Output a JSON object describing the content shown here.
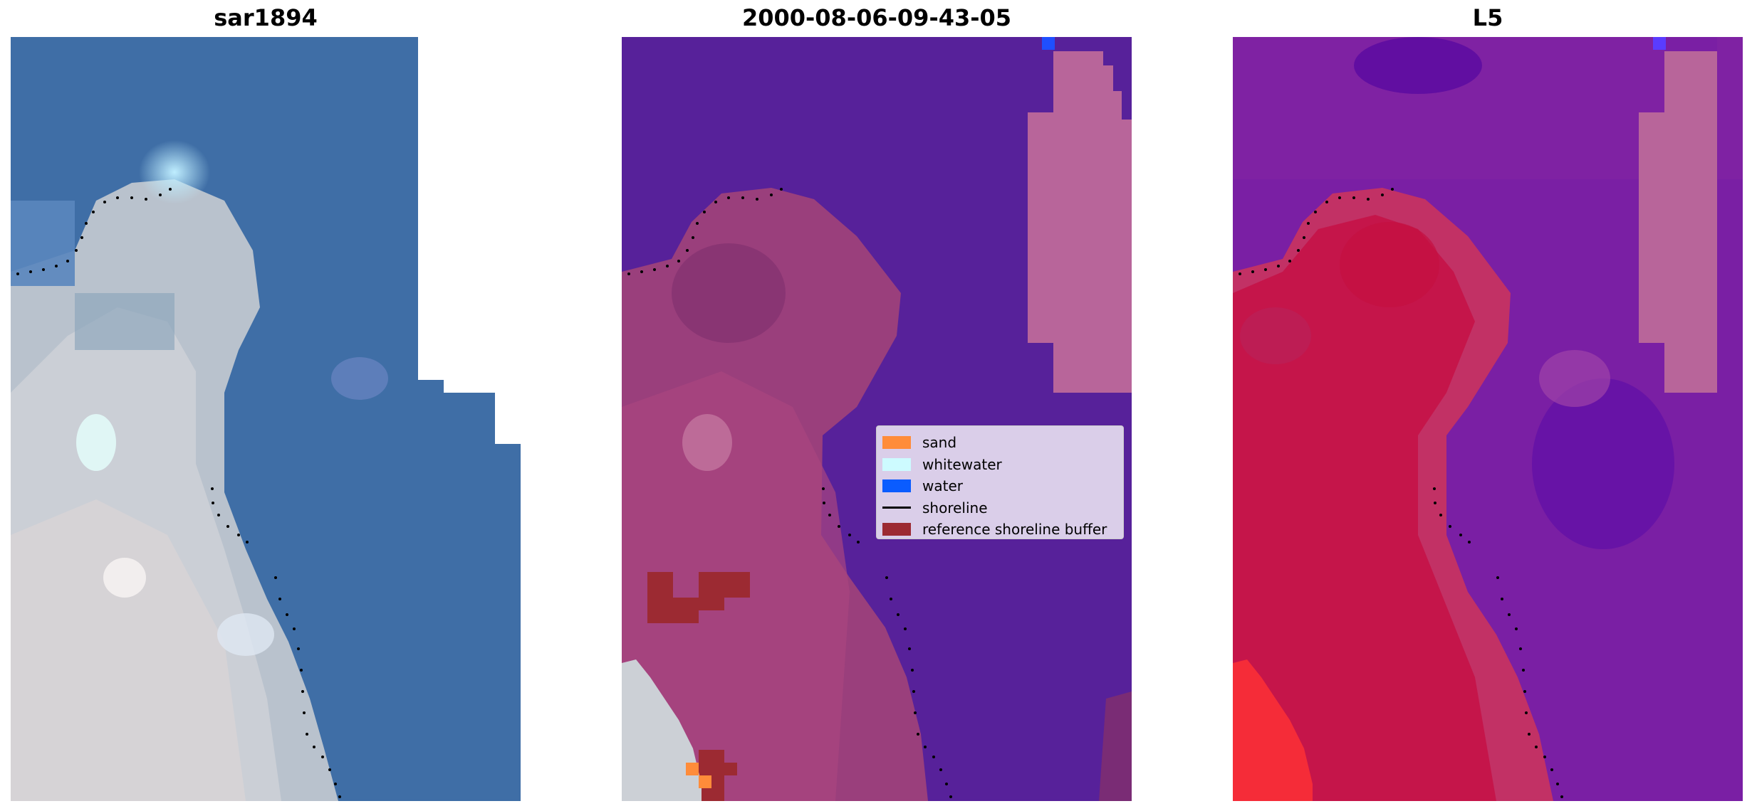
{
  "panels": [
    {
      "title": "sar1894"
    },
    {
      "title": "2000-08-06-09-43-05"
    },
    {
      "title": "L5"
    }
  ],
  "legend": {
    "items": [
      {
        "label": "sand",
        "color": "#ff8c3a",
        "kind": "patch"
      },
      {
        "label": "whitewater",
        "color": "#cdfbff",
        "kind": "patch"
      },
      {
        "label": "water",
        "color": "#0a5cff",
        "kind": "patch"
      },
      {
        "label": "shoreline",
        "color": "#000000",
        "kind": "line"
      },
      {
        "label": "reference shoreline buffer",
        "color": "#9c2a32",
        "kind": "patch"
      }
    ]
  },
  "colors": {
    "rgb_water": "#3d6fa6",
    "rgb_land": "#c9cfd8",
    "class_water": "#57219a",
    "class_land": "#9a3f7c",
    "class_mask": "#b8659a",
    "index_water": "#6f14a8",
    "index_land": "#c4123e",
    "buffer": "#9c2a32",
    "sand": "#ff8c3a",
    "water_px": "#1f4fff",
    "shoreline_dots": "#000000"
  }
}
